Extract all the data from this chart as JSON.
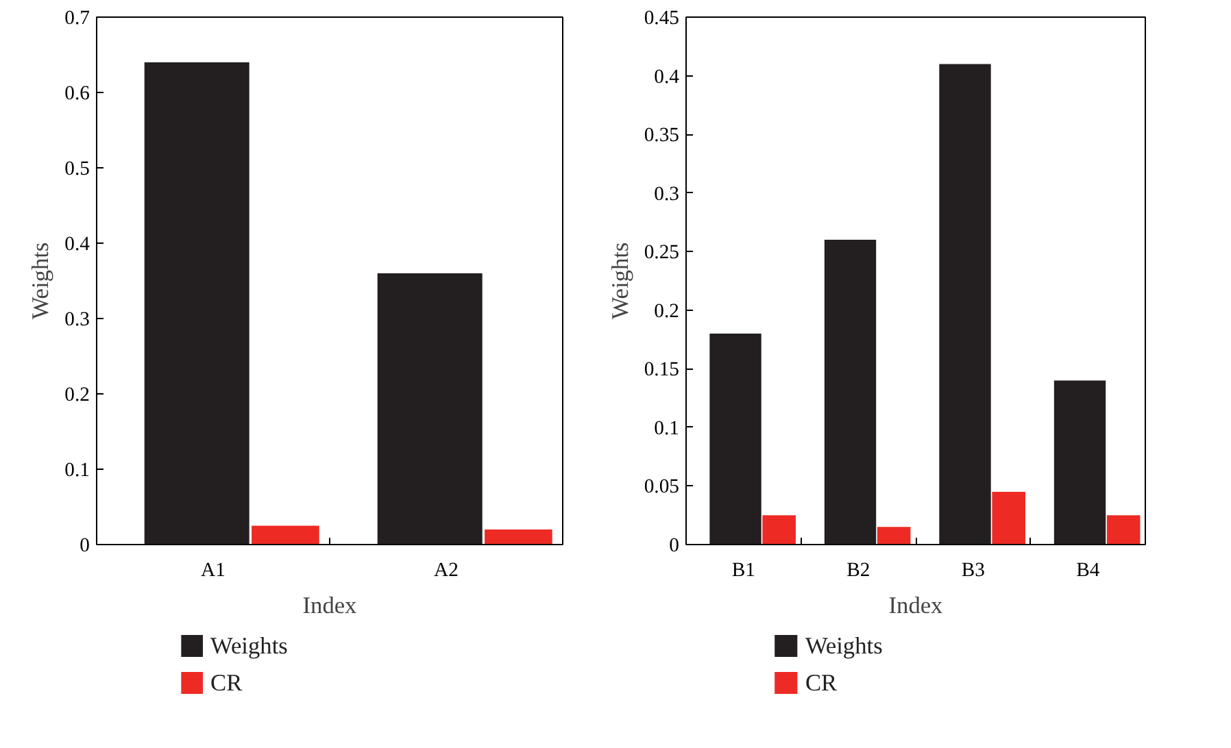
{
  "chart_data": [
    {
      "type": "bar",
      "categories": [
        "A1",
        "A2"
      ],
      "series": [
        {
          "name": "Weights",
          "color": "#231f20",
          "values": [
            0.64,
            0.36
          ]
        },
        {
          "name": "CR",
          "color": "#ee2a24",
          "values": [
            0.025,
            0.02
          ]
        }
      ],
      "xlabel": "Index",
      "ylabel": "Weights",
      "ylim": [
        0,
        0.7
      ],
      "yticks": [
        0,
        0.1,
        0.2,
        0.3,
        0.4,
        0.5,
        0.6,
        0.7
      ],
      "grid": false,
      "legend": "bottom"
    },
    {
      "type": "bar",
      "categories": [
        "B1",
        "B2",
        "B3",
        "B4"
      ],
      "series": [
        {
          "name": "Weights",
          "color": "#231f20",
          "values": [
            0.18,
            0.26,
            0.41,
            0.14
          ]
        },
        {
          "name": "CR",
          "color": "#ee2a24",
          "values": [
            0.025,
            0.015,
            0.045,
            0.025
          ]
        }
      ],
      "xlabel": "Index",
      "ylabel": "Weights",
      "ylim": [
        0,
        0.45
      ],
      "yticks": [
        0,
        0.05,
        0.1,
        0.15,
        0.2,
        0.25,
        0.3,
        0.35,
        0.4,
        0.45
      ],
      "grid": false,
      "legend": "bottom"
    }
  ]
}
